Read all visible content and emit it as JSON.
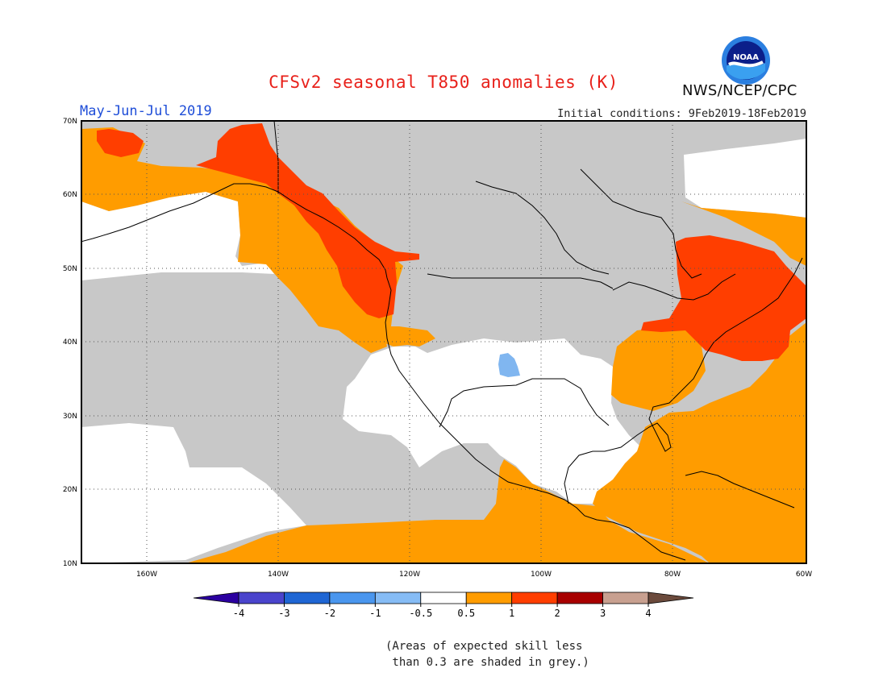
{
  "title": "CFSv2 seasonal T850 anomalies (K)",
  "agency": "NWS/NCEP/CPC",
  "logo_text": "NOAA",
  "season": "May-Jun-Jul 2019",
  "initial_conditions": "Initial conditions: 9Feb2019-18Feb2019",
  "lat_labels": [
    "70N",
    "60N",
    "50N",
    "40N",
    "30N",
    "20N",
    "10N"
  ],
  "lon_labels": [
    "160W",
    "140W",
    "120W",
    "100W",
    "80W",
    "60W"
  ],
  "colorbar": {
    "ticks": [
      "-4",
      "-3",
      "-2",
      "-1",
      "-0.5",
      "0.5",
      "1",
      "2",
      "3",
      "4"
    ],
    "colors": [
      "#2b00a0",
      "#4a44cc",
      "#1f66d4",
      "#4a96ee",
      "#86bcf5",
      "#ffffff",
      "#ff9c00",
      "#ff3e00",
      "#a80000",
      "#c8a090",
      "#6b4a3c"
    ]
  },
  "colors": {
    "land_grey": "#c8c8c8",
    "ocean_white": "#ffffff",
    "orange": "#ff9c00",
    "red": "#ff3e00",
    "light_blue": "#80b6f0"
  },
  "note_line1": "(Areas of expected skill less",
  "note_line2": " than 0.3 are shaded in grey.)"
}
